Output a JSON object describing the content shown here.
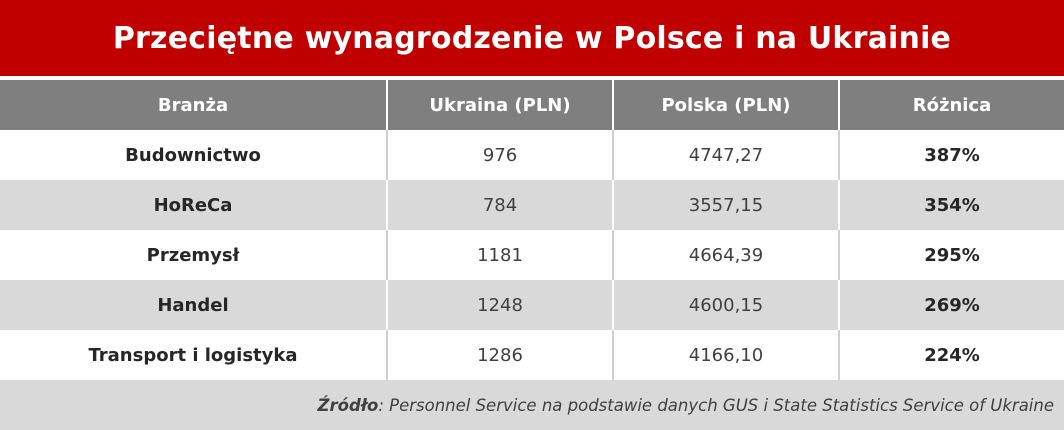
{
  "title": "Przeciętne wynagrodzenie w Polsce i na Ukrainie",
  "chart_data": {
    "type": "table",
    "title": "Przeciętne wynagrodzenie w Polsce i na Ukrainie",
    "columns": [
      "Branża",
      "Ukraina (PLN)",
      "Polska (PLN)",
      "Różnica"
    ],
    "rows": [
      [
        "Budownictwo",
        "976",
        "4747,27",
        "387%"
      ],
      [
        "HoReCa",
        "784",
        "3557,15",
        "354%"
      ],
      [
        "Przemysł",
        "1181",
        "4664,39",
        "295%"
      ],
      [
        "Handel",
        "1248",
        "4600,15",
        "269%"
      ],
      [
        "Transport i logistyka",
        "1286",
        "4166,10",
        "224%"
      ]
    ]
  },
  "source": {
    "label": "Źródło",
    "text": ": Personnel Service na podstawie danych GUS i State Statistics Service of Ukraine"
  },
  "colors": {
    "title_bg": "#c00000",
    "header_bg": "#7f7f7f",
    "stripe_bg": "#d9d9d9"
  }
}
